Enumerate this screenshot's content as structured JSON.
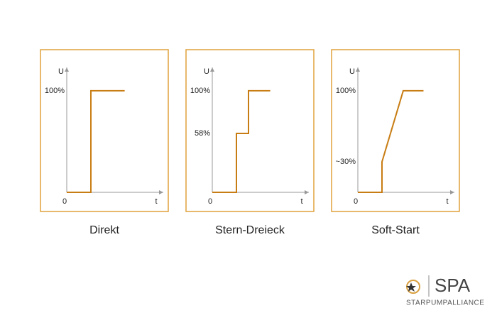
{
  "chart_data": [
    {
      "type": "line",
      "title": "Direkt",
      "xlabel": "t",
      "ylabel": "U",
      "xlim": [
        0,
        10
      ],
      "ylim": [
        0,
        123
      ],
      "xticks": [
        0
      ],
      "yticks": [
        {
          "value": 100,
          "label": "100%"
        }
      ],
      "series": [
        {
          "color": "#c87d14",
          "x": [
            0,
            2.5,
            2.5,
            6
          ],
          "values": [
            0,
            0,
            100,
            100
          ]
        }
      ]
    },
    {
      "type": "line",
      "title": "Stern-Dreieck",
      "xlabel": "t",
      "ylabel": "U",
      "xlim": [
        0,
        10
      ],
      "ylim": [
        0,
        123
      ],
      "xticks": [
        0
      ],
      "yticks": [
        {
          "value": 58,
          "label": "58%"
        },
        {
          "value": 100,
          "label": "100%"
        }
      ],
      "series": [
        {
          "color": "#c87d14",
          "x": [
            0,
            2.5,
            2.5,
            3.75,
            3.75,
            6
          ],
          "values": [
            0,
            0,
            58,
            58,
            100,
            100
          ]
        }
      ]
    },
    {
      "type": "line",
      "title": "Soft-Start",
      "xlabel": "t",
      "ylabel": "U",
      "xlim": [
        0,
        10
      ],
      "ylim": [
        0,
        123
      ],
      "xticks": [
        0
      ],
      "yticks": [
        {
          "value": 30,
          "label": "~30%"
        },
        {
          "value": 100,
          "label": "100%"
        }
      ],
      "series": [
        {
          "color": "#c87d14",
          "x": [
            0,
            2.5,
            2.5,
            4.7,
            6.8
          ],
          "values": [
            0,
            0,
            30,
            100,
            100
          ]
        }
      ]
    }
  ],
  "logo": {
    "name": "SPA",
    "tagline": "STARPUMPALLIANCE"
  }
}
